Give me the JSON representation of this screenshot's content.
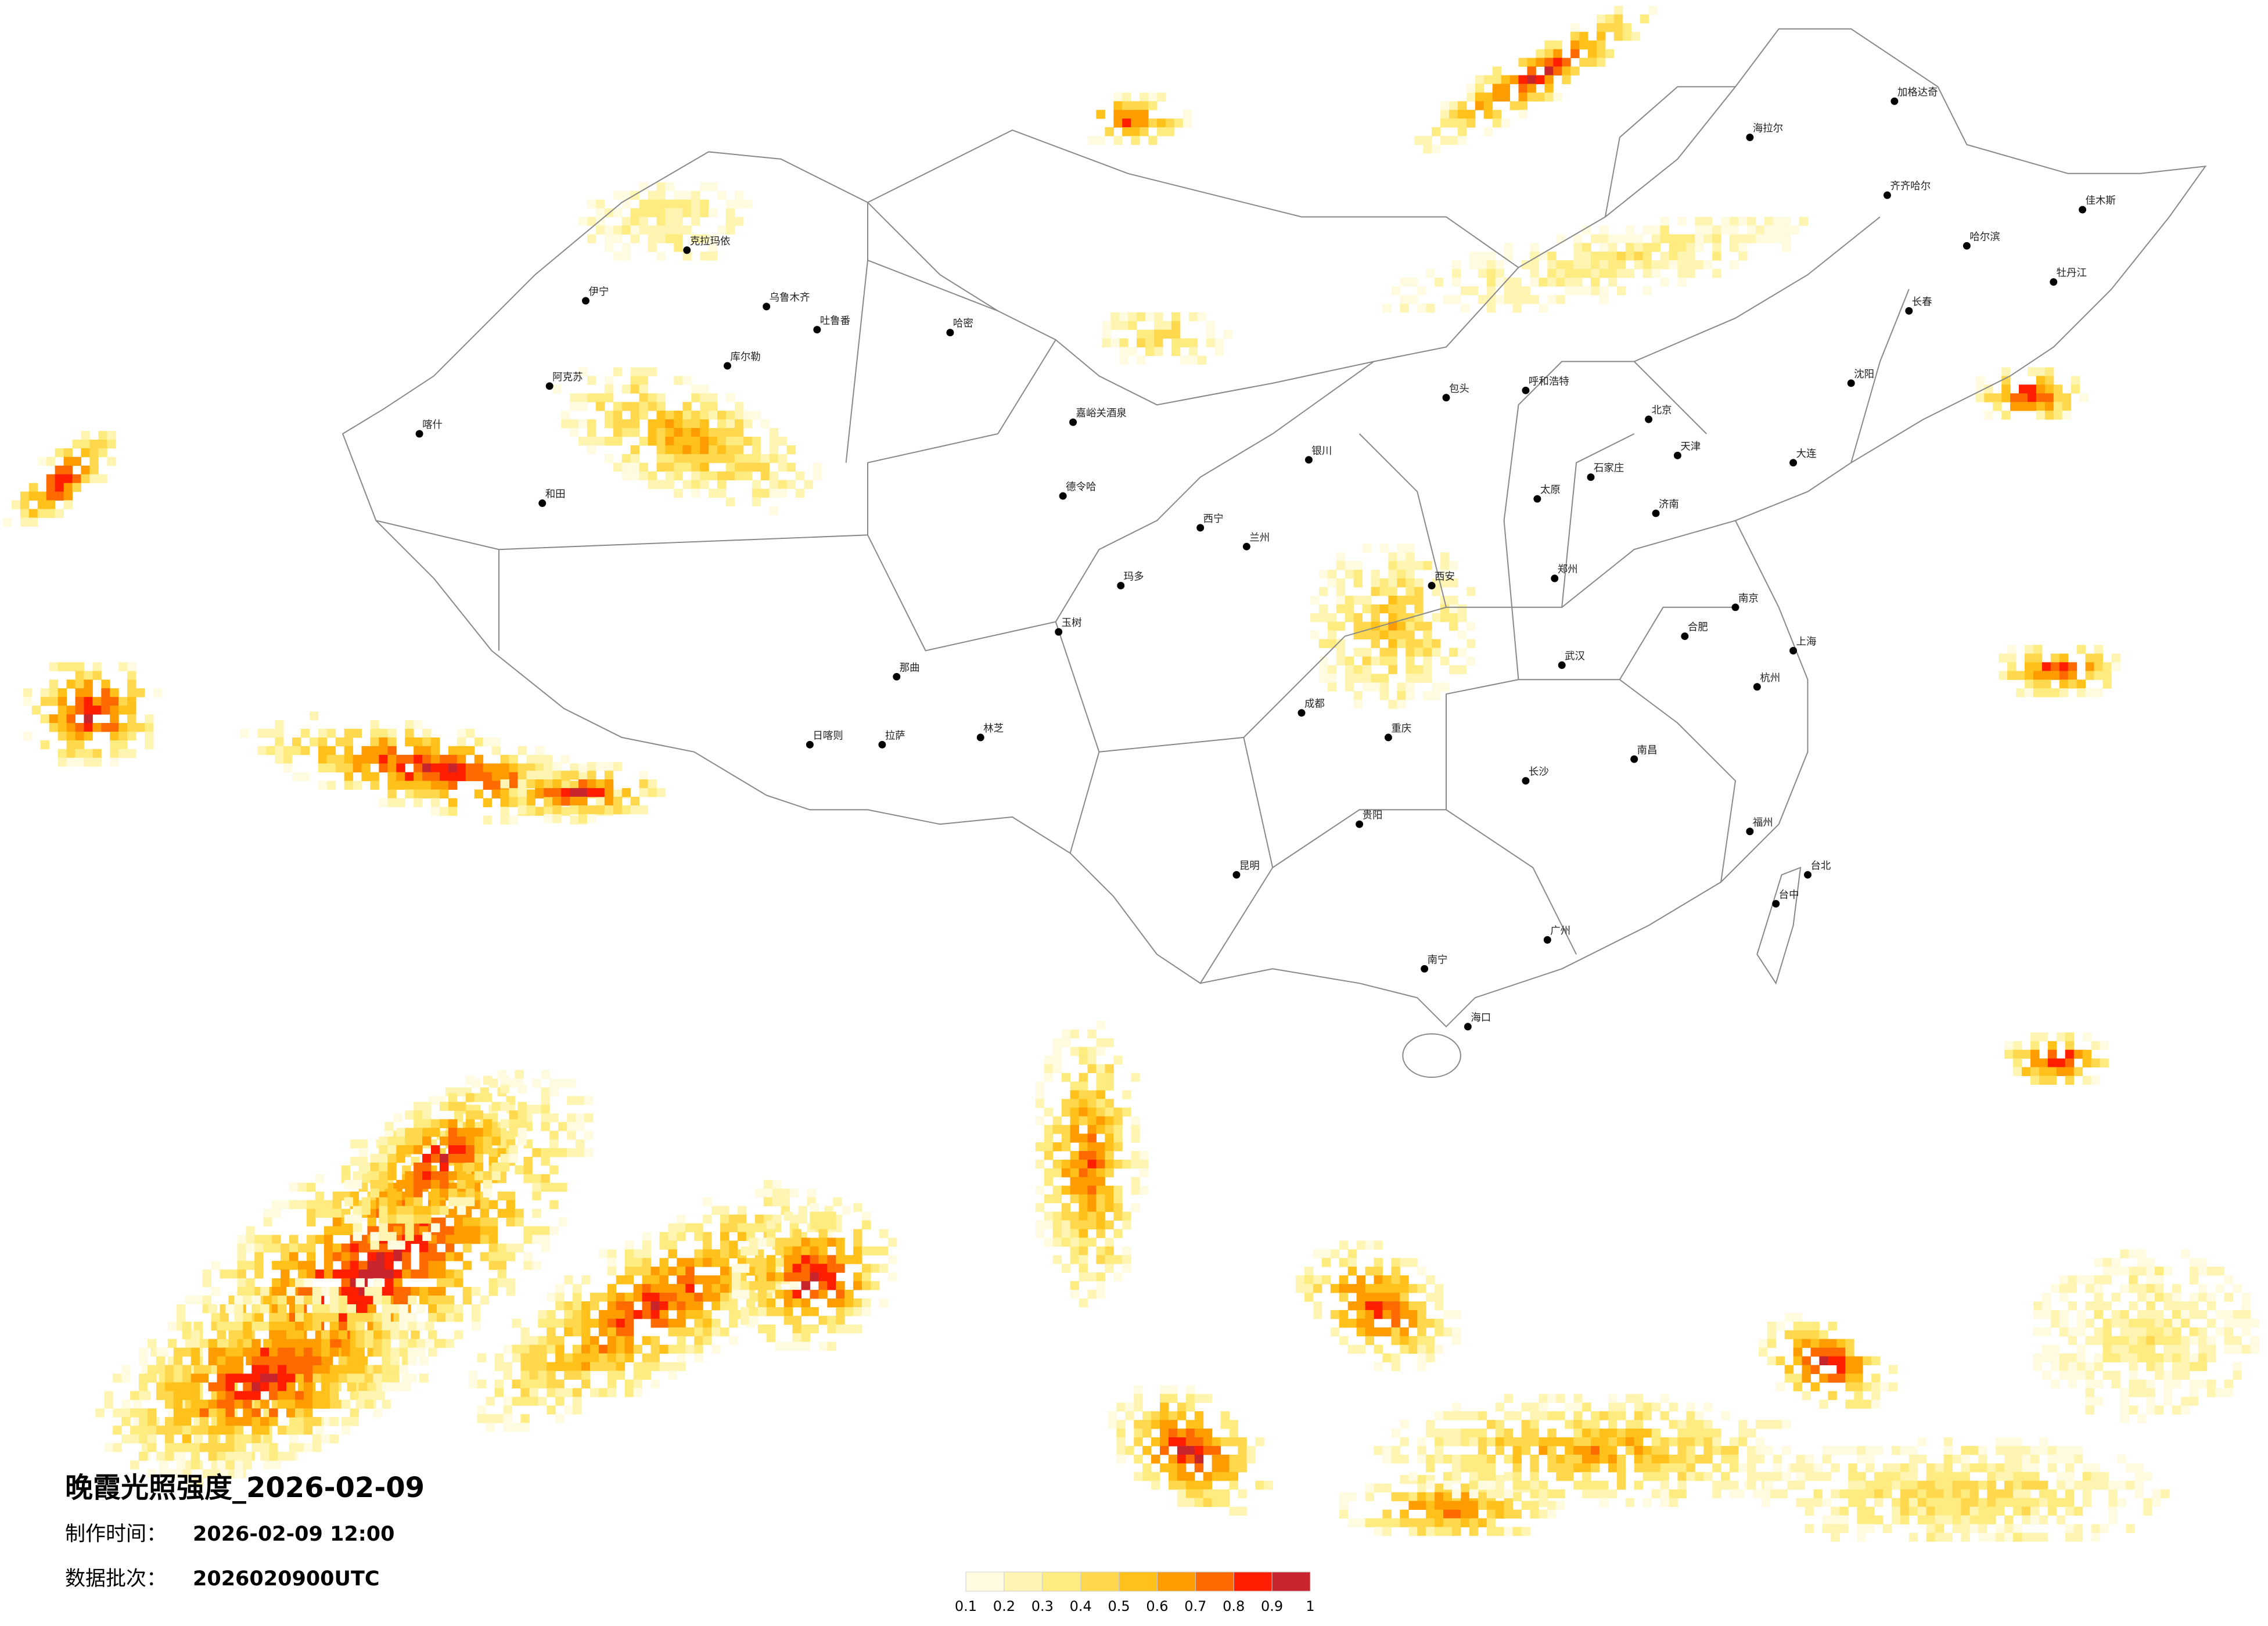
{
  "info": {
    "title": "晚霞光照强度_2026-02-09",
    "made_label": "制作时间：",
    "made_value": "2026-02-09 12:00",
    "batch_label": "数据批次：",
    "batch_value": "2026020900UTC"
  },
  "legend": {
    "colors": [
      "#fffbe0",
      "#fff5b3",
      "#ffec80",
      "#ffd84d",
      "#ffc11a",
      "#ff9c00",
      "#ff6a00",
      "#ff1e00",
      "#c8242c"
    ],
    "ticks": [
      0.1,
      0.2,
      0.3,
      0.4,
      0.5,
      0.6,
      0.7,
      0.8,
      0.9,
      1
    ]
  },
  "cities": [
    "克拉玛依",
    "伊宁",
    "乌鲁木齐",
    "吐鲁番",
    "哈密",
    "阿克苏",
    "库尔勒",
    "喀什",
    "和田",
    "德令哈",
    "嘉峪关酒泉",
    "玛多",
    "玉树",
    "日喀则",
    "拉萨",
    "林芝",
    "那曲",
    "西宁",
    "兰州",
    "银川",
    "呼和浩特",
    "包头",
    "北京",
    "天津",
    "石家庄",
    "太原",
    "济南",
    "郑州",
    "西安",
    "成都",
    "重庆",
    "武汉",
    "长沙",
    "南昌",
    "合肥",
    "南京",
    "上海",
    "杭州",
    "福州",
    "广州",
    "南宁",
    "昆明",
    "贵阳",
    "海口",
    "台北",
    "台中",
    "沈阳",
    "长春",
    "哈尔滨",
    "大连",
    "海拉尔",
    "齐齐哈尔",
    "加格达奇",
    "佳木斯",
    "牡丹江"
  ]
}
